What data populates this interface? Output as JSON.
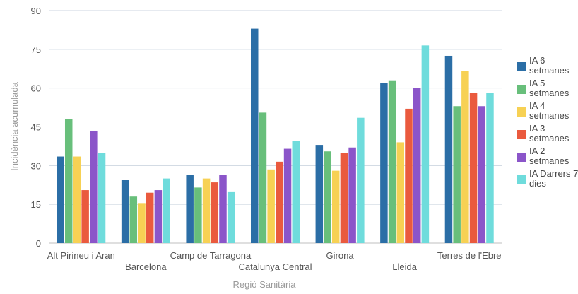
{
  "chart_data": {
    "type": "bar",
    "xlabel": "Regió Sanitària",
    "ylabel": "Incidència acumulada",
    "ylim": [
      0,
      90
    ],
    "yticks": [
      0,
      15,
      30,
      45,
      60,
      75,
      90
    ],
    "grid": true,
    "legend_position": "right",
    "categories": [
      "Alt Pirineu i Aran",
      "Barcelona",
      "Camp de Tarragona",
      "Catalunya Central",
      "Girona",
      "Lleida",
      "Terres de l'Ebre"
    ],
    "series": [
      {
        "name": "IA 6 setmanes",
        "color": "#2b6ea6",
        "values": [
          33.5,
          24.5,
          26.5,
          83,
          38,
          62,
          72.5
        ]
      },
      {
        "name": "IA 5 setmanes",
        "color": "#68bf7b",
        "values": [
          48,
          18,
          21.5,
          50.5,
          35.5,
          63,
          53
        ]
      },
      {
        "name": "IA 4 setmanes",
        "color": "#f7d154",
        "values": [
          33.5,
          15.5,
          25,
          28.5,
          28,
          39,
          66.5
        ]
      },
      {
        "name": "IA 3 setmanes",
        "color": "#ea5a3e",
        "values": [
          20.5,
          19.5,
          23.5,
          31.5,
          35,
          52,
          58
        ]
      },
      {
        "name": "IA 2 setmanes",
        "color": "#8b55c9",
        "values": [
          43.5,
          20.5,
          26.5,
          36.5,
          37,
          60,
          53
        ]
      },
      {
        "name": "IA Darrers 7 dies",
        "color": "#6fdcdc",
        "values": [
          35,
          25,
          20,
          39.5,
          48.5,
          76.5,
          58
        ]
      }
    ]
  }
}
